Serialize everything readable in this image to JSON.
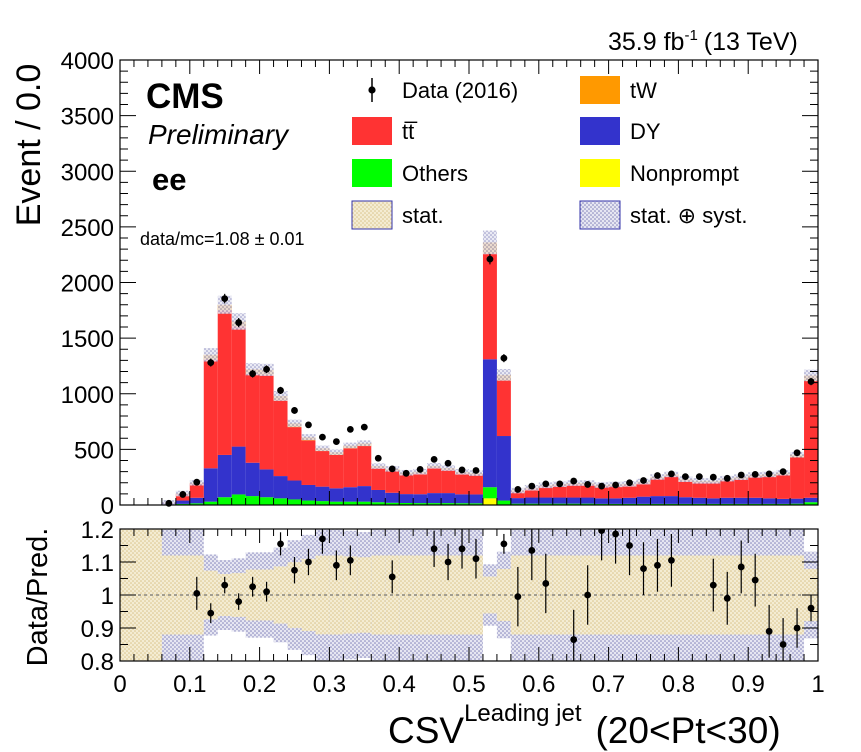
{
  "header": {
    "lumi": "35.9 fb",
    "lumi_sup": "-1",
    "energy": "(13 TeV)",
    "experiment": "CMS",
    "status": "Preliminary",
    "channel": "ee",
    "ratio_text": "data/mc=1.08 ± 0.01"
  },
  "legend": [
    {
      "key": "data",
      "label": "Data (2016)"
    },
    {
      "key": "tw",
      "label": "tW",
      "color": "#ff9900"
    },
    {
      "key": "tt",
      "label": "tt̅",
      "color": "#ff3333"
    },
    {
      "key": "dy",
      "label": "DY",
      "color": "#3333cc"
    },
    {
      "key": "others",
      "label": "Others",
      "color": "#00ff00"
    },
    {
      "key": "nonprompt",
      "label": "Nonprompt",
      "color": "#ffff00"
    },
    {
      "key": "stat",
      "label": "stat.",
      "color": "#e8d9a8"
    },
    {
      "key": "statsyst",
      "label": "stat. ⊕ syst.",
      "color": "#9999cc"
    }
  ],
  "chart_data": [
    {
      "type": "bar",
      "stacked": true,
      "ylabel": "Event / 0.0",
      "ylim": [
        0,
        4000
      ],
      "yticks": [
        0,
        500,
        1000,
        1500,
        2000,
        2500,
        3000,
        3500,
        4000
      ],
      "bin_edges": [
        0.0,
        0.02,
        0.04,
        0.06,
        0.08,
        0.1,
        0.12,
        0.14,
        0.16,
        0.18,
        0.2,
        0.22,
        0.24,
        0.26,
        0.28,
        0.3,
        0.32,
        0.34,
        0.36,
        0.38,
        0.4,
        0.42,
        0.44,
        0.46,
        0.48,
        0.5,
        0.52,
        0.54,
        0.56,
        0.58,
        0.6,
        0.62,
        0.64,
        0.66,
        0.68,
        0.7,
        0.72,
        0.74,
        0.76,
        0.78,
        0.8,
        0.82,
        0.84,
        0.86,
        0.88,
        0.9,
        0.92,
        0.94,
        0.96,
        0.98,
        1.0
      ],
      "series": [
        {
          "name": "Nonprompt",
          "values": [
            0,
            0,
            0,
            0,
            0,
            0,
            0,
            0,
            0,
            0,
            0,
            0,
            0,
            0,
            0,
            0,
            0,
            0,
            0,
            0,
            0,
            0,
            0,
            0,
            0,
            0,
            60,
            0,
            0,
            0,
            0,
            0,
            0,
            0,
            0,
            0,
            0,
            0,
            0,
            0,
            0,
            0,
            0,
            0,
            0,
            0,
            0,
            0,
            0,
            0
          ]
        },
        {
          "name": "Others",
          "values": [
            0,
            0,
            0,
            5,
            10,
            15,
            30,
            70,
            95,
            80,
            70,
            60,
            50,
            40,
            35,
            30,
            30,
            30,
            25,
            20,
            18,
            17,
            17,
            17,
            16,
            15,
            100,
            40,
            12,
            12,
            12,
            12,
            12,
            12,
            10,
            10,
            10,
            10,
            10,
            10,
            10,
            10,
            10,
            10,
            10,
            10,
            10,
            10,
            12,
            25
          ]
        },
        {
          "name": "DY",
          "values": [
            0,
            0,
            0,
            10,
            30,
            50,
            300,
            380,
            430,
            300,
            250,
            200,
            170,
            140,
            130,
            120,
            130,
            140,
            110,
            90,
            80,
            80,
            90,
            90,
            80,
            80,
            1150,
            580,
            50,
            55,
            55,
            55,
            55,
            55,
            50,
            50,
            55,
            65,
            70,
            70,
            60,
            55,
            50,
            55,
            55,
            55,
            50,
            45,
            45,
            40
          ]
        },
        {
          "name": "tt̅",
          "values": [
            0,
            0,
            0,
            5,
            60,
            130,
            980,
            1300,
            1080,
            800,
            850,
            680,
            480,
            400,
            320,
            300,
            350,
            360,
            200,
            200,
            180,
            190,
            230,
            210,
            190,
            180,
            950,
            500,
            60,
            80,
            100,
            110,
            120,
            120,
            110,
            115,
            115,
            125,
            160,
            180,
            150,
            140,
            145,
            160,
            170,
            190,
            200,
            220,
            370,
            1050
          ]
        },
        {
          "name": "tW",
          "values": [
            0,
            0,
            0,
            0,
            3,
            5,
            40,
            50,
            45,
            40,
            45,
            40,
            35,
            30,
            25,
            25,
            25,
            25,
            15,
            15,
            12,
            12,
            15,
            15,
            12,
            12,
            100,
            50,
            8,
            8,
            10,
            10,
            10,
            10,
            10,
            10,
            10,
            10,
            12,
            15,
            12,
            12,
            12,
            12,
            15,
            15,
            15,
            15,
            25,
            50
          ]
        }
      ],
      "data_points": {
        "name": "Data (2016)",
        "values": [
          0,
          0,
          0,
          15,
          95,
          205,
          1280,
          1855,
          1640,
          1180,
          1220,
          1030,
          850,
          720,
          610,
          570,
          680,
          700,
          420,
          325,
          285,
          320,
          410,
          375,
          315,
          310,
          2210,
          1320,
          140,
          170,
          190,
          190,
          215,
          185,
          170,
          180,
          200,
          220,
          265,
          280,
          255,
          255,
          250,
          240,
          270,
          275,
          280,
          300,
          470,
          1110
        ]
      }
    },
    {
      "type": "scatter",
      "ylabel": "Data/Pred.",
      "xlabel": "CSV",
      "xlabel_sup": "Leading jet",
      "xlabel_suffix": "(20<Pt<30)",
      "ylim": [
        0.8,
        1.2
      ],
      "yticks": [
        0.8,
        0.9,
        1,
        1.1,
        1.2
      ],
      "xlim": [
        0,
        1
      ],
      "xticks": [
        0,
        0.1,
        0.2,
        0.3,
        0.4,
        0.5,
        0.6,
        0.7,
        0.8,
        0.9,
        1
      ],
      "x": [
        0.11,
        0.13,
        0.15,
        0.17,
        0.19,
        0.21,
        0.23,
        0.25,
        0.27,
        0.29,
        0.31,
        0.33,
        0.39,
        0.45,
        0.47,
        0.49,
        0.51,
        0.55,
        0.57,
        0.59,
        0.61,
        0.65,
        0.67,
        0.69,
        0.71,
        0.73,
        0.75,
        0.77,
        0.79,
        0.85,
        0.87,
        0.89,
        0.91,
        0.93,
        0.95,
        0.97,
        0.99
      ],
      "ratio": [
        1.005,
        0.945,
        1.03,
        0.98,
        1.025,
        1.01,
        1.155,
        1.075,
        1.1,
        1.17,
        1.09,
        1.105,
        1.055,
        1.14,
        1.1,
        1.14,
        1.11,
        1.155,
        0.995,
        1.135,
        1.035,
        0.865,
        1.0,
        1.195,
        1.185,
        1.15,
        1.08,
        1.09,
        1.105,
        1.03,
        0.99,
        1.085,
        1.045,
        0.89,
        0.85,
        0.9,
        0.96
      ],
      "error": [
        0.05,
        0.03,
        0.025,
        0.025,
        0.03,
        0.03,
        0.035,
        0.04,
        0.04,
        0.045,
        0.045,
        0.045,
        0.05,
        0.055,
        0.055,
        0.06,
        0.06,
        0.03,
        0.09,
        0.09,
        0.09,
        0.09,
        0.09,
        0.09,
        0.09,
        0.09,
        0.08,
        0.08,
        0.08,
        0.08,
        0.08,
        0.08,
        0.08,
        0.08,
        0.08,
        0.06,
        0.04
      ]
    }
  ]
}
